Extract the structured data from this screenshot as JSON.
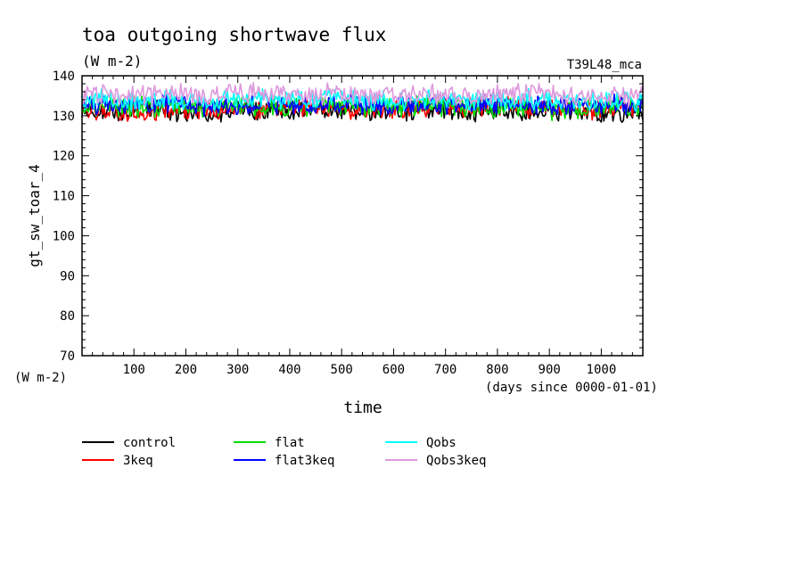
{
  "chart_data": {
    "type": "line",
    "title": "toa outgoing shortwave flux",
    "title_units": "(W m-2)",
    "run_label": "T39L48_mca",
    "ylabel": "gt_sw_toar_4",
    "ylabel_units": "(W m-2)",
    "xlabel": "time",
    "xlabel_units": "(days since 0000-01-01)",
    "xlim": [
      0,
      1080
    ],
    "ylim": [
      70,
      140
    ],
    "xticks": [
      100,
      200,
      300,
      400,
      500,
      600,
      700,
      800,
      900,
      1000
    ],
    "yticks": [
      70,
      80,
      90,
      100,
      110,
      120,
      130,
      140
    ],
    "grid": false,
    "legend_position": "bottom",
    "series": [
      {
        "name": "control",
        "color": "#000000",
        "x": [
          0,
          60,
          120,
          180,
          240,
          300,
          360,
          420,
          480,
          540,
          600,
          660,
          720,
          780,
          840,
          900,
          960,
          1020,
          1080
        ],
        "values": [
          131.5,
          131.0,
          131.5,
          131.0,
          130.5,
          131.5,
          131.5,
          131.0,
          131.5,
          131.0,
          131.0,
          131.5,
          131.0,
          131.5,
          131.0,
          131.5,
          131.0,
          130.0,
          130.5
        ]
      },
      {
        "name": "3keq",
        "color": "#ff0000",
        "x": [
          0,
          60,
          120,
          180,
          240,
          300,
          360,
          420,
          480,
          540,
          600,
          660,
          720,
          780,
          840,
          900,
          960,
          1020,
          1080
        ],
        "values": [
          132.0,
          131.0,
          130.5,
          131.5,
          131.5,
          132.0,
          131.5,
          131.5,
          132.0,
          131.5,
          131.5,
          132.0,
          132.0,
          132.5,
          132.5,
          131.5,
          131.5,
          132.0,
          132.0
        ]
      },
      {
        "name": "flat",
        "color": "#00dd00",
        "x": [
          0,
          60,
          120,
          180,
          240,
          300,
          360,
          420,
          480,
          540,
          600,
          660,
          720,
          780,
          840,
          900,
          960,
          1020,
          1080
        ],
        "values": [
          132.5,
          132.5,
          132.0,
          132.5,
          132.0,
          132.5,
          132.5,
          132.0,
          132.5,
          132.0,
          132.0,
          132.5,
          132.5,
          132.0,
          132.5,
          131.5,
          132.0,
          132.5,
          132.0
        ]
      },
      {
        "name": "flat3keq",
        "color": "#0000ff",
        "x": [
          0,
          60,
          120,
          180,
          240,
          300,
          360,
          420,
          480,
          540,
          600,
          660,
          720,
          780,
          840,
          900,
          960,
          1020,
          1080
        ],
        "values": [
          133.0,
          132.5,
          132.5,
          133.0,
          132.5,
          133.0,
          133.0,
          132.5,
          133.0,
          132.5,
          132.0,
          132.5,
          133.0,
          133.0,
          133.0,
          132.5,
          132.5,
          133.0,
          132.5
        ]
      },
      {
        "name": "Qobs",
        "color": "#00ffff",
        "x": [
          0,
          60,
          120,
          180,
          240,
          300,
          360,
          420,
          480,
          540,
          600,
          660,
          720,
          780,
          840,
          900,
          960,
          1020,
          1080
        ],
        "values": [
          134.0,
          134.0,
          133.5,
          134.0,
          133.5,
          134.0,
          134.5,
          134.0,
          134.5,
          134.0,
          133.5,
          134.0,
          134.0,
          133.5,
          134.0,
          134.0,
          133.5,
          134.0,
          133.5
        ]
      },
      {
        "name": "Qobs3keq",
        "color": "#dd99dd",
        "x": [
          0,
          60,
          120,
          180,
          240,
          300,
          360,
          420,
          480,
          540,
          600,
          660,
          720,
          780,
          840,
          900,
          960,
          1020,
          1080
        ],
        "values": [
          135.5,
          135.5,
          135.0,
          135.5,
          135.0,
          135.5,
          135.5,
          135.0,
          135.5,
          135.0,
          135.0,
          135.5,
          135.5,
          135.0,
          135.5,
          135.5,
          135.0,
          135.5,
          134.5
        ]
      }
    ]
  }
}
